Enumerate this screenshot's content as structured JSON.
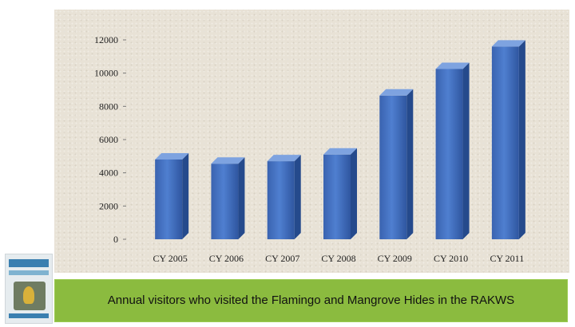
{
  "chart_data": {
    "type": "bar",
    "categories": [
      "CY 2005",
      "CY 2006",
      "CY 2007",
      "CY 2008",
      "CY 2009",
      "CY 2010",
      "CY 2011"
    ],
    "values": [
      4800,
      4550,
      4700,
      5100,
      8650,
      10250,
      11600
    ],
    "ylim": [
      0,
      12000
    ],
    "yticks": [
      0,
      2000,
      4000,
      6000,
      8000,
      10000,
      12000
    ],
    "bar_color": "#4472c4",
    "grid": false,
    "legend": "none"
  },
  "caption": {
    "text": "Annual visitors who visited the Flamingo and Mangrove Hides in the RAKWS",
    "background": "#8bbb3f"
  },
  "thumbnail": {
    "icon": "brochure-thumbnail-icon"
  }
}
